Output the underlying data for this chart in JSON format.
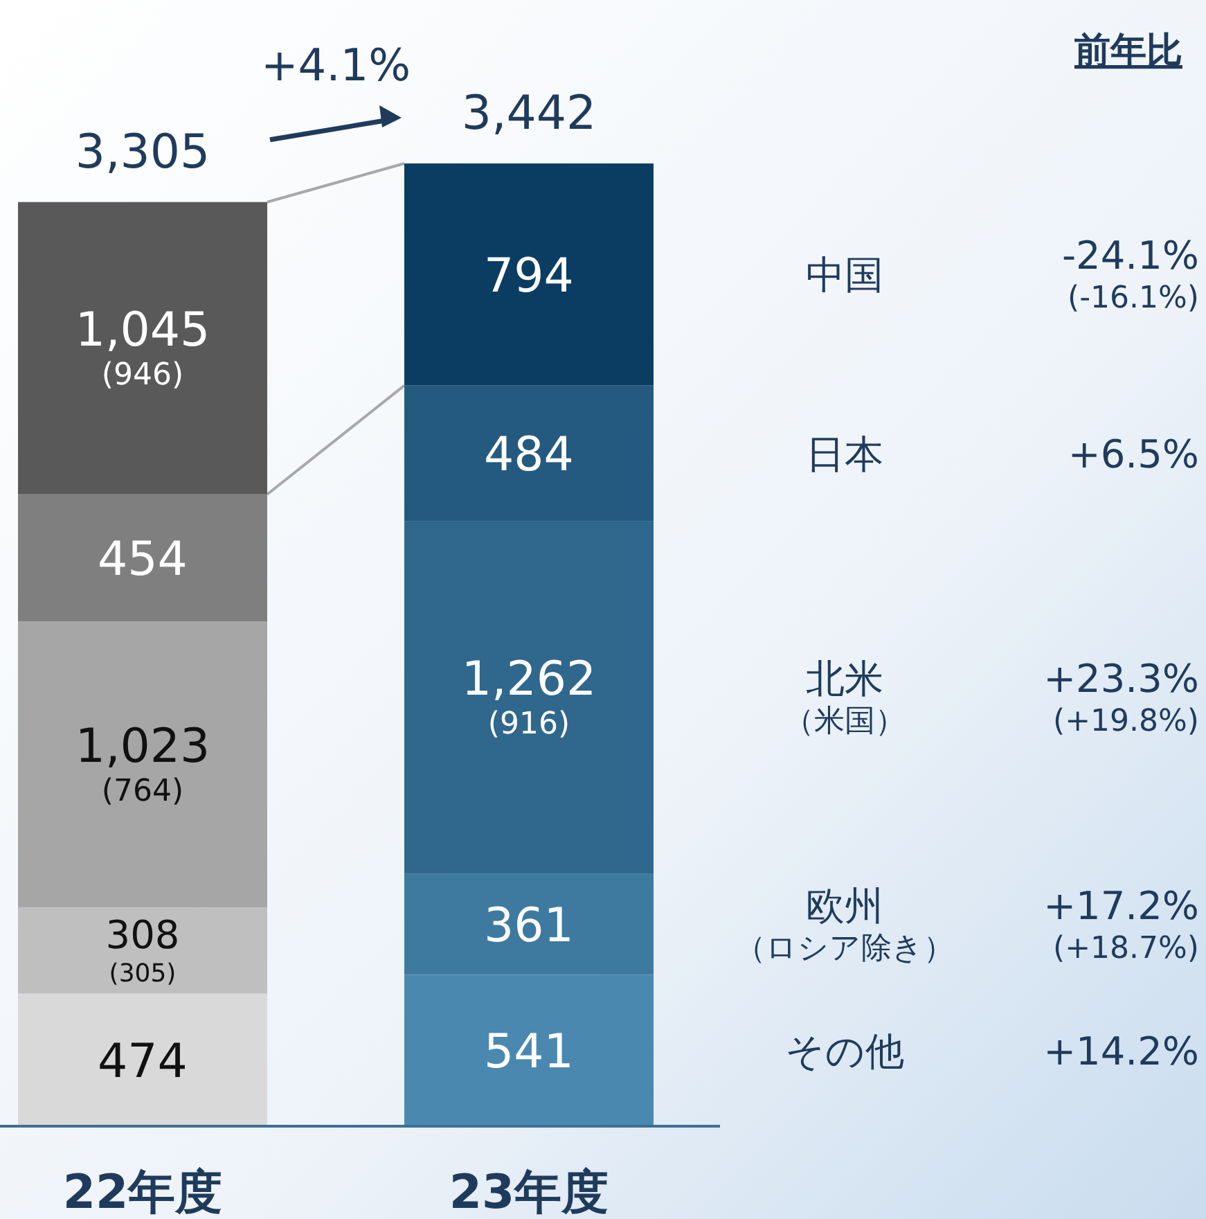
{
  "chart_data": {
    "type": "bar",
    "stacked": true,
    "categories": [
      "22年度",
      "23年度"
    ],
    "legend": "right",
    "legend_title": "前年比",
    "series": [
      {
        "name": "その他",
        "colors": [
          "#d9d9d9",
          "#4a88b0"
        ],
        "values": [
          474,
          541
        ],
        "value_labels": [
          "474",
          "541"
        ]
      },
      {
        "name": "欧州（ロシア除き）",
        "colors": [
          "#bfbfbf",
          "#3e7aa0"
        ],
        "values": [
          308,
          361
        ],
        "value_labels": [
          "308\n(305)",
          "361"
        ]
      },
      {
        "name": "北米（米国）",
        "colors": [
          "#a6a6a6",
          "#30678d"
        ],
        "values": [
          1023,
          1262
        ],
        "value_labels": [
          "1,023\n(764)",
          "1,262\n(916)"
        ]
      },
      {
        "name": "日本",
        "colors": [
          "#7f7f7f",
          "#255a80"
        ],
        "values": [
          454,
          484
        ],
        "value_labels": [
          "454",
          "484"
        ]
      },
      {
        "name": "中国",
        "colors": [
          "#595959",
          "#0b3d63"
        ],
        "values": [
          1045,
          794
        ],
        "value_labels": [
          "1,045\n(946)",
          "794"
        ]
      }
    ],
    "totals": [
      "3,305",
      "3,442"
    ],
    "annotations": [
      "+4.1%",
      "+14.2%",
      "+17.2%\n(+18.7%)",
      "+23.3%\n(+19.8%)",
      "+6.5%",
      "-24.1%\n(-16.1%)"
    ]
  }
}
